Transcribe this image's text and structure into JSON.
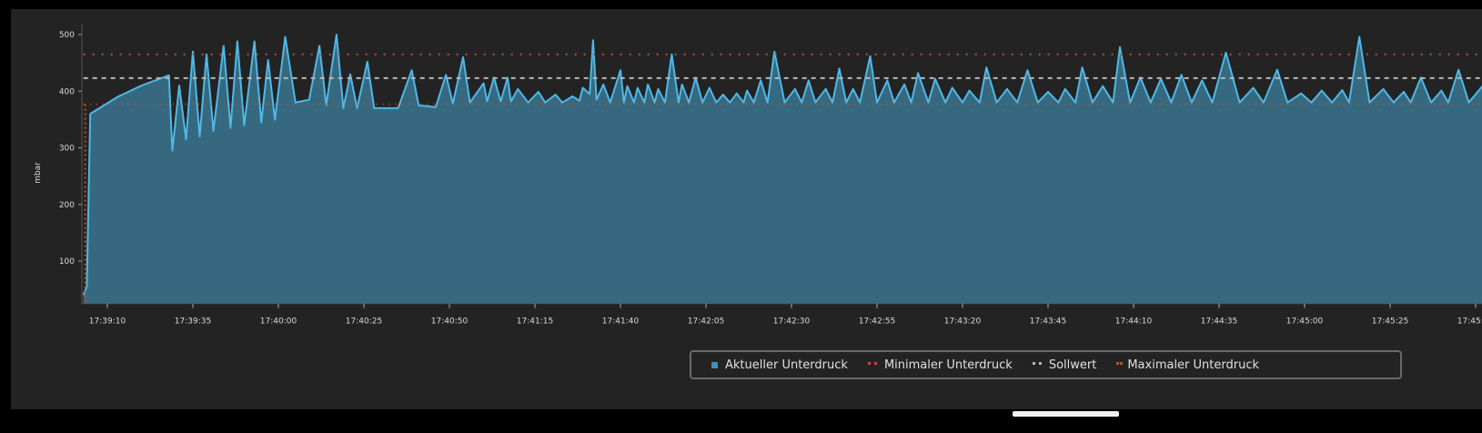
{
  "chart_data": {
    "type": "area",
    "ylabel": "mbar",
    "ylim": [
      25,
      515
    ],
    "yticks": [
      100,
      200,
      300,
      400,
      500
    ],
    "xlim": [
      "17:39:03",
      "17:45:53"
    ],
    "xticks": [
      "17:39:10",
      "17:39:35",
      "17:40:00",
      "17:40:25",
      "17:40:50",
      "17:41:15",
      "17:41:40",
      "17:42:05",
      "17:42:30",
      "17:42:55",
      "17:43:20",
      "17:43:45",
      "17:44:10",
      "17:44:35",
      "17:45:00",
      "17:45:25",
      "17:45:50"
    ],
    "grid": false,
    "legend_position": "bottom-right",
    "series": [
      {
        "name": "Aktueller Unterdruck",
        "color": "#4fb8e8",
        "fill": "#36697f",
        "points": [
          [
            "17:39:03",
            40
          ],
          [
            "17:39:04",
            55
          ],
          [
            "17:39:05",
            360
          ],
          [
            "17:39:13",
            390
          ],
          [
            "17:39:20",
            410
          ],
          [
            "17:39:28",
            428
          ],
          [
            "17:39:29",
            295
          ],
          [
            "17:39:31",
            410
          ],
          [
            "17:39:33",
            315
          ],
          [
            "17:39:35",
            470
          ],
          [
            "17:39:37",
            320
          ],
          [
            "17:39:39",
            465
          ],
          [
            "17:39:41",
            330
          ],
          [
            "17:39:44",
            480
          ],
          [
            "17:39:46",
            335
          ],
          [
            "17:39:48",
            488
          ],
          [
            "17:39:50",
            340
          ],
          [
            "17:39:53",
            488
          ],
          [
            "17:39:55",
            345
          ],
          [
            "17:39:57",
            455
          ],
          [
            "17:39:59",
            350
          ],
          [
            "17:40:02",
            496
          ],
          [
            "17:40:05",
            380
          ],
          [
            "17:40:09",
            385
          ],
          [
            "17:40:12",
            480
          ],
          [
            "17:40:14",
            375
          ],
          [
            "17:40:17",
            500
          ],
          [
            "17:40:19",
            370
          ],
          [
            "17:40:21",
            430
          ],
          [
            "17:40:23",
            370
          ],
          [
            "17:40:26",
            452
          ],
          [
            "17:40:28",
            370
          ],
          [
            "17:40:35",
            370
          ],
          [
            "17:40:39",
            437
          ],
          [
            "17:40:41",
            375
          ],
          [
            "17:40:46",
            372
          ],
          [
            "17:40:49",
            429
          ],
          [
            "17:40:51",
            378
          ],
          [
            "17:40:54",
            460
          ],
          [
            "17:40:56",
            380
          ],
          [
            "17:41:00",
            414
          ],
          [
            "17:41:01",
            382
          ],
          [
            "17:41:03",
            424
          ],
          [
            "17:41:05",
            382
          ],
          [
            "17:41:07",
            424
          ],
          [
            "17:41:08",
            382
          ],
          [
            "17:41:10",
            404
          ],
          [
            "17:41:13",
            380
          ],
          [
            "17:41:16",
            399
          ],
          [
            "17:41:18",
            380
          ],
          [
            "17:41:21",
            394
          ],
          [
            "17:41:23",
            380
          ],
          [
            "17:41:26",
            391
          ],
          [
            "17:41:28",
            383
          ],
          [
            "17:41:29",
            406
          ],
          [
            "17:41:31",
            395
          ],
          [
            "17:41:32",
            490
          ],
          [
            "17:41:33",
            385
          ],
          [
            "17:41:35",
            412
          ],
          [
            "17:41:37",
            380
          ],
          [
            "17:41:40",
            437
          ],
          [
            "17:41:41",
            380
          ],
          [
            "17:41:42",
            409
          ],
          [
            "17:41:44",
            380
          ],
          [
            "17:41:45",
            406
          ],
          [
            "17:41:47",
            380
          ],
          [
            "17:41:48",
            412
          ],
          [
            "17:41:50",
            380
          ],
          [
            "17:41:51",
            404
          ],
          [
            "17:41:53",
            380
          ],
          [
            "17:41:55",
            465
          ],
          [
            "17:41:57",
            380
          ],
          [
            "17:41:58",
            412
          ],
          [
            "17:42:00",
            380
          ],
          [
            "17:42:02",
            424
          ],
          [
            "17:42:04",
            380
          ],
          [
            "17:42:06",
            406
          ],
          [
            "17:42:08",
            380
          ],
          [
            "17:42:10",
            394
          ],
          [
            "17:42:12",
            380
          ],
          [
            "17:42:14",
            396
          ],
          [
            "17:42:16",
            380
          ],
          [
            "17:42:17",
            401
          ],
          [
            "17:42:19",
            380
          ],
          [
            "17:42:21",
            419
          ],
          [
            "17:42:23",
            380
          ],
          [
            "17:42:25",
            470
          ],
          [
            "17:42:28",
            380
          ],
          [
            "17:42:31",
            404
          ],
          [
            "17:42:33",
            380
          ],
          [
            "17:42:35",
            419
          ],
          [
            "17:42:37",
            380
          ],
          [
            "17:42:40",
            404
          ],
          [
            "17:42:42",
            380
          ],
          [
            "17:42:44",
            440
          ],
          [
            "17:42:46",
            380
          ],
          [
            "17:42:48",
            404
          ],
          [
            "17:42:50",
            380
          ],
          [
            "17:42:53",
            462
          ],
          [
            "17:42:55",
            380
          ],
          [
            "17:42:58",
            419
          ],
          [
            "17:43:00",
            380
          ],
          [
            "17:43:03",
            412
          ],
          [
            "17:43:05",
            380
          ],
          [
            "17:43:07",
            432
          ],
          [
            "17:43:10",
            380
          ],
          [
            "17:43:12",
            422
          ],
          [
            "17:43:15",
            380
          ],
          [
            "17:43:17",
            406
          ],
          [
            "17:43:20",
            380
          ],
          [
            "17:43:22",
            401
          ],
          [
            "17:43:25",
            380
          ],
          [
            "17:43:27",
            442
          ],
          [
            "17:43:30",
            380
          ],
          [
            "17:43:33",
            404
          ],
          [
            "17:43:36",
            380
          ],
          [
            "17:43:39",
            437
          ],
          [
            "17:43:42",
            380
          ],
          [
            "17:43:45",
            399
          ],
          [
            "17:43:48",
            380
          ],
          [
            "17:43:50",
            404
          ],
          [
            "17:43:53",
            380
          ],
          [
            "17:43:55",
            442
          ],
          [
            "17:43:58",
            380
          ],
          [
            "17:44:01",
            409
          ],
          [
            "17:44:04",
            380
          ],
          [
            "17:44:06",
            478
          ],
          [
            "17:44:09",
            380
          ],
          [
            "17:44:12",
            424
          ],
          [
            "17:44:15",
            380
          ],
          [
            "17:44:18",
            422
          ],
          [
            "17:44:21",
            380
          ],
          [
            "17:44:24",
            429
          ],
          [
            "17:44:27",
            380
          ],
          [
            "17:44:30",
            419
          ],
          [
            "17:44:33",
            380
          ],
          [
            "17:44:37",
            468
          ],
          [
            "17:44:41",
            380
          ],
          [
            "17:44:45",
            406
          ],
          [
            "17:44:48",
            380
          ],
          [
            "17:44:52",
            438
          ],
          [
            "17:44:55",
            380
          ],
          [
            "17:44:59",
            396
          ],
          [
            "17:45:02",
            380
          ],
          [
            "17:45:05",
            401
          ],
          [
            "17:45:08",
            380
          ],
          [
            "17:45:11",
            402
          ],
          [
            "17:45:13",
            380
          ],
          [
            "17:45:16",
            496
          ],
          [
            "17:45:19",
            380
          ],
          [
            "17:45:23",
            404
          ],
          [
            "17:45:26",
            380
          ],
          [
            "17:45:29",
            399
          ],
          [
            "17:45:31",
            380
          ],
          [
            "17:45:34",
            424
          ],
          [
            "17:45:37",
            380
          ],
          [
            "17:45:40",
            401
          ],
          [
            "17:45:42",
            380
          ],
          [
            "17:45:45",
            438
          ],
          [
            "17:45:48",
            380
          ],
          [
            "17:45:52",
            409
          ],
          [
            "17:45:53",
            385
          ]
        ]
      },
      {
        "name": "Minimaler Unterdruck",
        "color": "#c0502a",
        "value": 377
      },
      {
        "name": "Sollwert",
        "color": "#b8b8b8",
        "value": 423
      },
      {
        "name": "Maximaler Unterdruck",
        "color": "#c0502a",
        "value": 465
      }
    ]
  }
}
